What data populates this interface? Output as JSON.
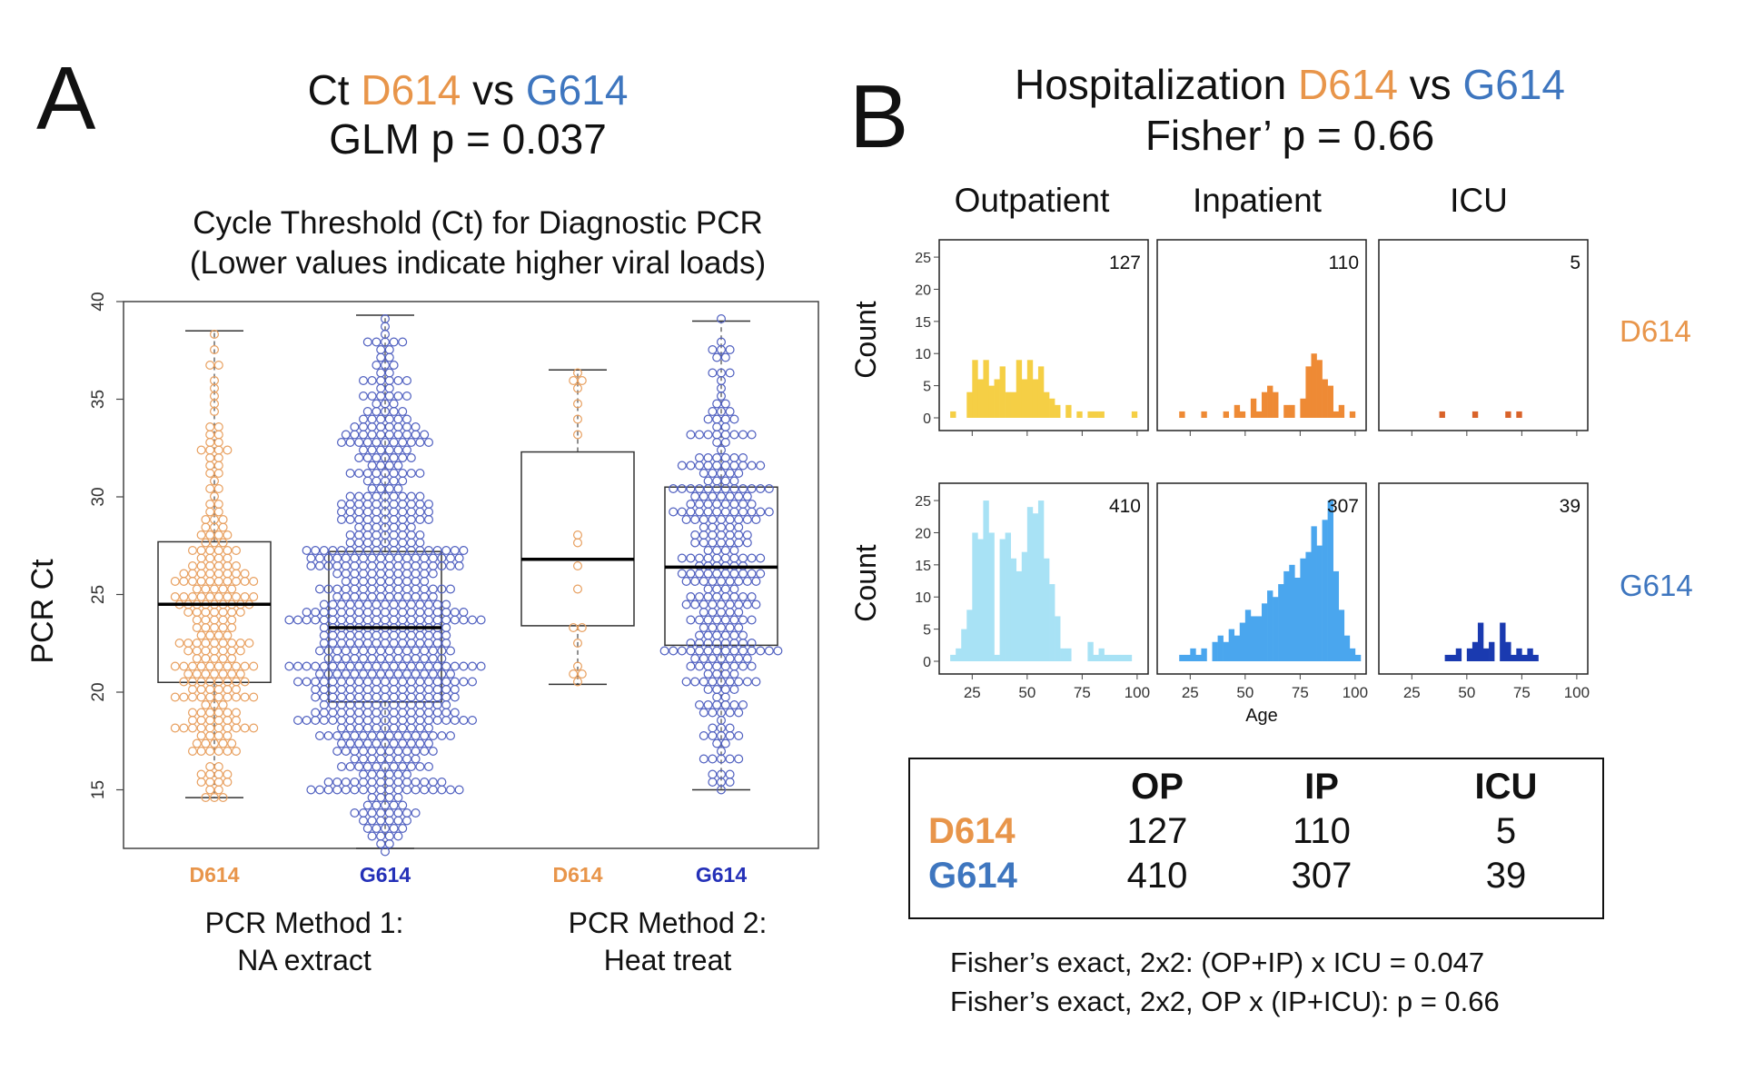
{
  "colors": {
    "d614": "#e8954a",
    "g614": "#3e76bf",
    "d614_points": "#e8a060",
    "g614_points": "#5060c0",
    "d614_axis": "#e8954a",
    "g614_axis": "#2430b8",
    "op_d": "#f5cf45",
    "ip_d": "#ee8a35",
    "icu_d": "#d9632a",
    "op_g": "#a8e2f5",
    "ip_g": "#4aa6ee",
    "icu_g": "#1a3ab0"
  },
  "panel_a": {
    "letter": "A",
    "title": {
      "pre": "Ct ",
      "d": "D614",
      "mid": " vs ",
      "g": "G614"
    },
    "stat": "GLM p = 0.037",
    "subtitle_1": "Cycle Threshold (Ct) for Diagnostic PCR",
    "subtitle_2": "(Lower values indicate higher viral loads)",
    "method_1_line_1": "PCR Method 1:",
    "method_1_line_2": "NA extract",
    "method_2_line_1": "PCR Method 2:",
    "method_2_line_2": "Heat treat"
  },
  "panel_b": {
    "letter": "B",
    "title": {
      "pre": "Hospitalization ",
      "d": "D614",
      "mid": " vs ",
      "g": "G614"
    },
    "stat": "Fisher’ p = 0.66",
    "facets": [
      "Outpatient",
      "Inpatient",
      "ICU"
    ],
    "row_labels": [
      "D614",
      "G614"
    ],
    "summary_table": {
      "header": [
        "",
        "OP",
        "IP",
        "ICU"
      ],
      "rows": [
        {
          "label": "D614",
          "values": [
            "127",
            "110",
            "5"
          ]
        },
        {
          "label": "G614",
          "values": [
            "410",
            "307",
            "39"
          ]
        }
      ]
    },
    "fisher_1": "Fisher’s exact, 2x2: (OP+IP) x ICU = 0.047",
    "fisher_2": "Fisher’s exact, 2x2, OP x (IP+ICU): p = 0.66"
  },
  "chart_data": [
    {
      "type": "box",
      "ylabel": "PCR Ct",
      "ylim": [
        12,
        40
      ],
      "yticks": [
        15,
        20,
        25,
        30,
        35,
        40
      ],
      "grid": false,
      "categories": [
        "D614",
        "G614",
        "D614",
        "G614"
      ],
      "groups": [
        "PCR Method 1: NA extract",
        "PCR Method 1: NA extract",
        "PCR Method 2: Heat treat",
        "PCR Method 2: Heat treat"
      ],
      "series": [
        {
          "variant": "D614",
          "method": 1,
          "min": 14.6,
          "q1": 20.5,
          "median": 24.5,
          "q3": 27.7,
          "max": 38.5,
          "n_points": 240
        },
        {
          "variant": "G614",
          "method": 1,
          "min": 12.0,
          "q1": 19.5,
          "median": 23.3,
          "q3": 27.2,
          "max": 39.3,
          "n_points": 700
        },
        {
          "variant": "D614",
          "method": 2,
          "min": 20.4,
          "q1": 23.4,
          "median": 26.8,
          "q3": 32.3,
          "max": 36.5,
          "n_points": 16
        },
        {
          "variant": "G614",
          "method": 2,
          "min": 15.0,
          "q1": 22.4,
          "median": 26.4,
          "q3": 30.5,
          "max": 39.0,
          "n_points": 300
        }
      ]
    },
    {
      "type": "bar",
      "subtype": "histogram-facets",
      "xlabel": "Age",
      "ylabel": "Count",
      "xticks": [
        25,
        50,
        75,
        100
      ],
      "yticks": [
        0,
        5,
        10,
        15,
        20,
        25
      ],
      "xlim": [
        10,
        105
      ],
      "ylim": [
        0,
        26
      ],
      "bin_width": 2.5,
      "x": [
        15,
        17.5,
        20,
        22.5,
        25,
        27.5,
        30,
        32.5,
        35,
        37.5,
        40,
        42.5,
        45,
        47.5,
        50,
        52.5,
        55,
        57.5,
        60,
        62.5,
        65,
        67.5,
        70,
        72.5,
        75,
        77.5,
        80,
        82.5,
        85,
        87.5,
        90,
        92.5,
        95,
        97.5,
        100
      ],
      "panels": [
        {
          "variant": "D614",
          "facet": "Outpatient",
          "n": "127",
          "values": [
            1,
            0,
            0,
            4,
            9,
            6,
            9,
            5,
            6,
            8,
            4,
            4,
            9,
            6,
            9,
            6,
            8,
            4,
            3,
            2,
            0,
            2,
            0,
            1,
            0,
            1,
            1,
            1,
            0,
            0,
            0,
            0,
            0,
            1,
            0
          ]
        },
        {
          "variant": "D614",
          "facet": "Inpatient",
          "n": "110",
          "values": [
            0,
            0,
            1,
            0,
            0,
            0,
            1,
            0,
            0,
            0,
            1,
            0,
            2,
            1,
            0,
            3,
            1,
            4,
            5,
            4,
            0,
            2,
            2,
            0,
            3,
            8,
            10,
            9,
            6,
            5,
            1,
            2,
            0,
            1,
            0
          ]
        },
        {
          "variant": "D614",
          "facet": "ICU",
          "n": "5",
          "values": [
            0,
            0,
            0,
            0,
            0,
            0,
            0,
            0,
            0,
            1,
            0,
            0,
            0,
            0,
            0,
            1,
            0,
            0,
            0,
            0,
            0,
            1,
            0,
            1,
            0,
            0,
            0,
            0,
            0,
            0,
            0,
            0,
            0,
            0,
            0
          ]
        },
        {
          "variant": "G614",
          "facet": "Outpatient",
          "n": "410",
          "values": [
            1,
            2,
            5,
            8,
            20,
            19,
            25,
            20,
            1,
            19,
            20,
            16,
            14,
            17,
            24,
            23,
            25,
            16,
            12,
            7,
            2,
            2,
            0,
            0,
            0,
            3,
            1,
            2,
            1,
            1,
            1,
            1,
            1,
            0,
            0
          ]
        },
        {
          "variant": "G614",
          "facet": "Inpatient",
          "n": "307",
          "values": [
            0,
            0,
            1,
            1,
            2,
            1,
            2,
            0,
            3,
            4,
            3,
            5,
            4,
            6,
            8,
            7,
            7,
            9,
            11,
            10,
            12,
            14,
            15,
            13,
            16,
            17,
            21,
            18,
            22,
            25,
            14,
            8,
            4,
            2,
            1
          ]
        },
        {
          "variant": "G614",
          "facet": "ICU",
          "n": "39",
          "values": [
            0,
            0,
            0,
            0,
            0,
            0,
            0,
            0,
            0,
            0,
            1,
            1,
            2,
            0,
            2,
            3,
            6,
            2,
            3,
            0,
            6,
            3,
            1,
            2,
            1,
            2,
            1,
            0,
            0,
            0,
            0,
            0,
            0,
            0,
            0
          ]
        }
      ]
    }
  ]
}
